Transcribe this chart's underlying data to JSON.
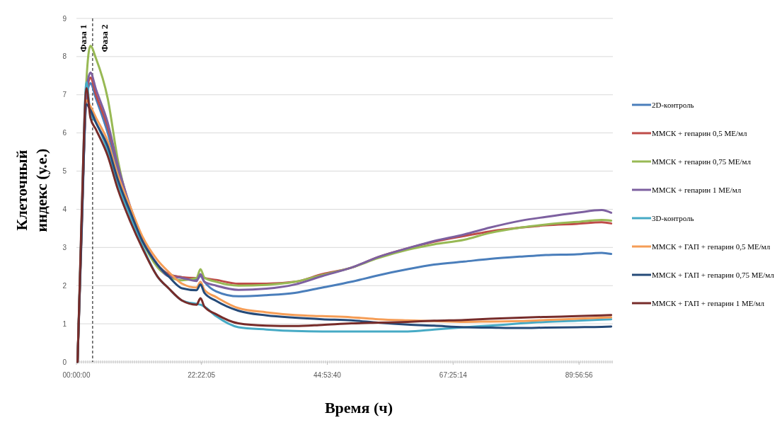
{
  "chart_data": {
    "type": "line",
    "xlabel": "Время (ч)",
    "ylabel": "Клеточный индекс (у.е.)",
    "x": [
      0.2,
      0.9,
      1.8,
      2.5,
      3.5,
      5.6,
      7.4,
      9.7,
      11.8,
      14.5,
      16.5,
      18.9,
      21.5,
      22.2,
      22.9,
      25,
      29,
      34,
      39.1,
      44,
      49.2,
      54,
      59.3,
      64,
      69.4,
      74,
      79.5,
      84,
      89.6,
      94,
      95.7
    ],
    "xlim": [
      0,
      96
    ],
    "xticks": [
      {
        "value": 0,
        "label": "00:00:00"
      },
      {
        "value": 22.3681,
        "label": "22:22:05"
      },
      {
        "value": 44.8944,
        "label": "44:53:40"
      },
      {
        "value": 67.4206,
        "label": "67:25:14"
      },
      {
        "value": 89.9489,
        "label": "89:56:56"
      }
    ],
    "ylim": [
      0,
      9
    ],
    "yticks": [
      0,
      1,
      2,
      3,
      4,
      5,
      6,
      7,
      8,
      9
    ],
    "grid": "y",
    "legend": "right",
    "line_style": "solid",
    "marker": "none",
    "ref_lines": [
      {
        "axis": "x",
        "value": 2.9,
        "line_style": "dashed",
        "color": "#000000"
      }
    ],
    "annotations": [
      "Фаза 1",
      "Фаза 2"
    ],
    "series": [
      {
        "name": "2D-контроль",
        "color": "#4a7ebb",
        "values": [
          0,
          3.4,
          6.9,
          7.3,
          6.9,
          6.0,
          5.0,
          3.95,
          3.2,
          2.55,
          2.3,
          2.22,
          2.15,
          2.25,
          2.1,
          1.85,
          1.72,
          1.75,
          1.81,
          1.95,
          2.1,
          2.27,
          2.43,
          2.55,
          2.63,
          2.7,
          2.76,
          2.8,
          2.82,
          2.86,
          2.83
        ]
      },
      {
        "name": "ММСК + гепарин 0,5 МЕ/мл",
        "color": "#be4b48",
        "values": [
          0,
          3.4,
          7.0,
          7.45,
          7.0,
          6.15,
          5.15,
          4.0,
          3.22,
          2.55,
          2.3,
          2.22,
          2.2,
          2.28,
          2.2,
          2.15,
          2.05,
          2.05,
          2.1,
          2.3,
          2.47,
          2.75,
          2.98,
          3.15,
          3.3,
          3.42,
          3.52,
          3.58,
          3.62,
          3.66,
          3.63
        ]
      },
      {
        "name": "ММСК + гепарин 0,75 МЕ/мл",
        "color": "#98b954",
        "values": [
          0,
          3.5,
          7.4,
          8.28,
          7.95,
          6.9,
          5.3,
          3.95,
          3.17,
          2.48,
          2.24,
          2.14,
          2.2,
          2.43,
          2.21,
          2.1,
          2.0,
          2.02,
          2.1,
          2.28,
          2.47,
          2.72,
          2.94,
          3.08,
          3.2,
          3.38,
          3.52,
          3.6,
          3.67,
          3.72,
          3.7
        ]
      },
      {
        "name": "ММСК + гепарин 1 МЕ/мл",
        "color": "#7d60a0",
        "values": [
          0,
          3.4,
          7.1,
          7.58,
          7.14,
          6.27,
          5.16,
          4.04,
          3.23,
          2.55,
          2.24,
          2.2,
          2.12,
          2.3,
          2.1,
          2.0,
          1.89,
          1.92,
          2.03,
          2.25,
          2.47,
          2.75,
          2.98,
          3.17,
          3.34,
          3.52,
          3.7,
          3.8,
          3.91,
          3.98,
          3.91
        ]
      },
      {
        "name": "3D-контроль",
        "color": "#46aac5",
        "values": [
          0,
          3.6,
          7.33,
          6.52,
          6.27,
          5.53,
          4.66,
          3.79,
          3.04,
          2.24,
          1.93,
          1.61,
          1.52,
          1.5,
          1.45,
          1.2,
          0.91,
          0.85,
          0.81,
          0.8,
          0.8,
          0.8,
          0.8,
          0.85,
          0.91,
          0.95,
          1.01,
          1.05,
          1.08,
          1.11,
          1.12
        ]
      },
      {
        "name": "ММСК + ГАП + гепарин 0,5 МЕ/мл",
        "color": "#f59d56",
        "values": [
          0,
          3.3,
          6.85,
          6.7,
          6.4,
          5.78,
          4.9,
          4.04,
          3.29,
          2.67,
          2.36,
          2.05,
          1.95,
          2.1,
          1.89,
          1.7,
          1.41,
          1.3,
          1.23,
          1.2,
          1.17,
          1.12,
          1.09,
          1.07,
          1.05,
          1.06,
          1.07,
          1.1,
          1.13,
          1.16,
          1.17
        ]
      },
      {
        "name": "ММСК + ГАП + гепарин 0,75 МЕ/мл",
        "color": "#254a78",
        "values": [
          0,
          3.2,
          6.75,
          6.6,
          6.27,
          5.65,
          4.78,
          3.91,
          3.17,
          2.55,
          2.24,
          1.93,
          1.88,
          2.03,
          1.81,
          1.6,
          1.34,
          1.22,
          1.16,
          1.12,
          1.09,
          1.03,
          0.98,
          0.95,
          0.91,
          0.9,
          0.89,
          0.9,
          0.91,
          0.92,
          0.93
        ]
      },
      {
        "name": "ММСК + ГАП + гепарин 1 МЕ/мл",
        "color": "#772c2a",
        "values": [
          0,
          3.7,
          7.17,
          6.4,
          6.09,
          5.4,
          4.53,
          3.66,
          2.98,
          2.24,
          1.93,
          1.61,
          1.5,
          1.67,
          1.45,
          1.25,
          1.01,
          0.95,
          0.94,
          0.97,
          1.01,
          1.03,
          1.05,
          1.08,
          1.1,
          1.13,
          1.16,
          1.18,
          1.2,
          1.22,
          1.23
        ]
      }
    ]
  }
}
